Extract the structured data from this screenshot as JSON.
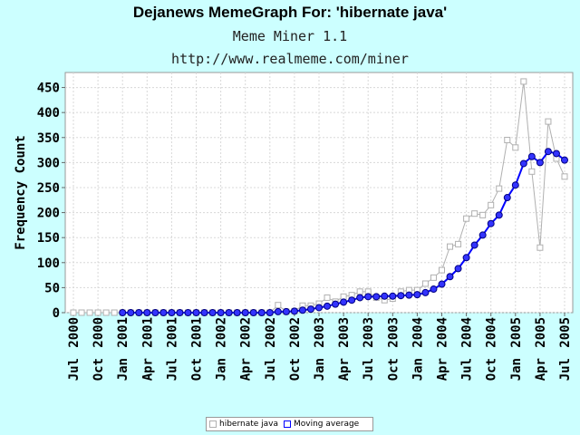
{
  "header": {
    "title": "Dejanews MemeGraph For: 'hibernate java'",
    "subtitle": "Meme Miner 1.1",
    "url": "http://www.realmeme.com/miner"
  },
  "colors": {
    "background": "#ccffff",
    "raw": "#b0b0b0",
    "average": "#0000ff"
  },
  "chart_data": {
    "type": "line",
    "ylabel": "Frequency Count",
    "xlabel": "",
    "ylim": [
      0,
      480
    ],
    "yticks": [
      0,
      50,
      100,
      150,
      200,
      250,
      300,
      350,
      400,
      450
    ],
    "grid": true,
    "legend_position": "bottom",
    "x": [
      "Jul 2000",
      "Aug 2000",
      "Sep 2000",
      "Oct 2000",
      "Nov 2000",
      "Dec 2000",
      "Jan 2001",
      "Feb 2001",
      "Mar 2001",
      "Apr 2001",
      "May 2001",
      "Jun 2001",
      "Jul 2001",
      "Aug 2001",
      "Sep 2001",
      "Oct 2001",
      "Nov 2001",
      "Dec 2001",
      "Jan 2002",
      "Feb 2002",
      "Mar 2002",
      "Apr 2002",
      "May 2002",
      "Jun 2002",
      "Jul 2002",
      "Aug 2002",
      "Sep 2002",
      "Oct 2002",
      "Nov 2002",
      "Dec 2002",
      "Jan 2003",
      "Feb 2003",
      "Mar 2003",
      "Apr 2003",
      "May 2003",
      "Jun 2003",
      "Jul 2003",
      "Aug 2003",
      "Sep 2003",
      "Oct 2003",
      "Nov 2003",
      "Dec 2003",
      "Jan 2004",
      "Feb 2004",
      "Mar 2004",
      "Apr 2004",
      "May 2004",
      "Jun 2004",
      "Jul 2004",
      "Aug 2004",
      "Sep 2004",
      "Oct 2004",
      "Nov 2004",
      "Dec 2004",
      "Jan 2005",
      "Feb 2005",
      "Mar 2005",
      "Apr 2005",
      "May 2005",
      "Jun 2005",
      "Jul 2005"
    ],
    "xtick_labels": [
      {
        "month": "Jul",
        "year": "2000"
      },
      {
        "month": "Oct",
        "year": "2000"
      },
      {
        "month": "Jan",
        "year": "2001"
      },
      {
        "month": "Apr",
        "year": "2001"
      },
      {
        "month": "Jul",
        "year": "2001"
      },
      {
        "month": "Oct",
        "year": "2001"
      },
      {
        "month": "Jan",
        "year": "2002"
      },
      {
        "month": "Apr",
        "year": "2002"
      },
      {
        "month": "Jul",
        "year": "2002"
      },
      {
        "month": "Oct",
        "year": "2002"
      },
      {
        "month": "Jan",
        "year": "2003"
      },
      {
        "month": "Apr",
        "year": "2003"
      },
      {
        "month": "Jul",
        "year": "2003"
      },
      {
        "month": "Oct",
        "year": "2003"
      },
      {
        "month": "Jan",
        "year": "2004"
      },
      {
        "month": "Apr",
        "year": "2004"
      },
      {
        "month": "Jul",
        "year": "2004"
      },
      {
        "month": "Oct",
        "year": "2004"
      },
      {
        "month": "Jan",
        "year": "2005"
      },
      {
        "month": "Apr",
        "year": "2005"
      },
      {
        "month": "Jul",
        "year": "2005"
      }
    ],
    "series": [
      {
        "name": "hibernate java",
        "values": [
          0,
          0,
          0,
          0,
          0,
          0,
          0,
          0,
          0,
          0,
          0,
          0,
          0,
          0,
          0,
          0,
          0,
          0,
          0,
          0,
          0,
          0,
          0,
          0,
          0,
          15,
          2,
          3,
          14,
          14,
          18,
          30,
          22,
          32,
          35,
          42,
          42,
          30,
          25,
          28,
          42,
          45,
          45,
          58,
          70,
          85,
          132,
          137,
          188,
          198,
          195,
          215,
          248,
          345,
          330,
          462,
          282,
          130,
          382,
          308,
          272
        ]
      },
      {
        "name": "Moving average",
        "values": [
          null,
          null,
          null,
          null,
          null,
          null,
          0,
          0,
          0,
          0,
          0,
          0,
          0,
          0,
          0,
          0,
          0,
          0,
          0,
          0,
          0,
          0,
          0,
          0,
          0,
          2,
          2,
          3,
          5,
          7,
          10,
          13,
          17,
          21,
          25,
          30,
          32,
          32,
          33,
          33,
          34,
          35,
          36,
          40,
          47,
          57,
          72,
          88,
          110,
          135,
          155,
          178,
          195,
          230,
          255,
          298,
          312,
          300,
          322,
          318,
          305
        ]
      }
    ]
  },
  "legend": {
    "items": [
      {
        "label": "hibernate java"
      },
      {
        "label": "Moving average"
      }
    ]
  }
}
